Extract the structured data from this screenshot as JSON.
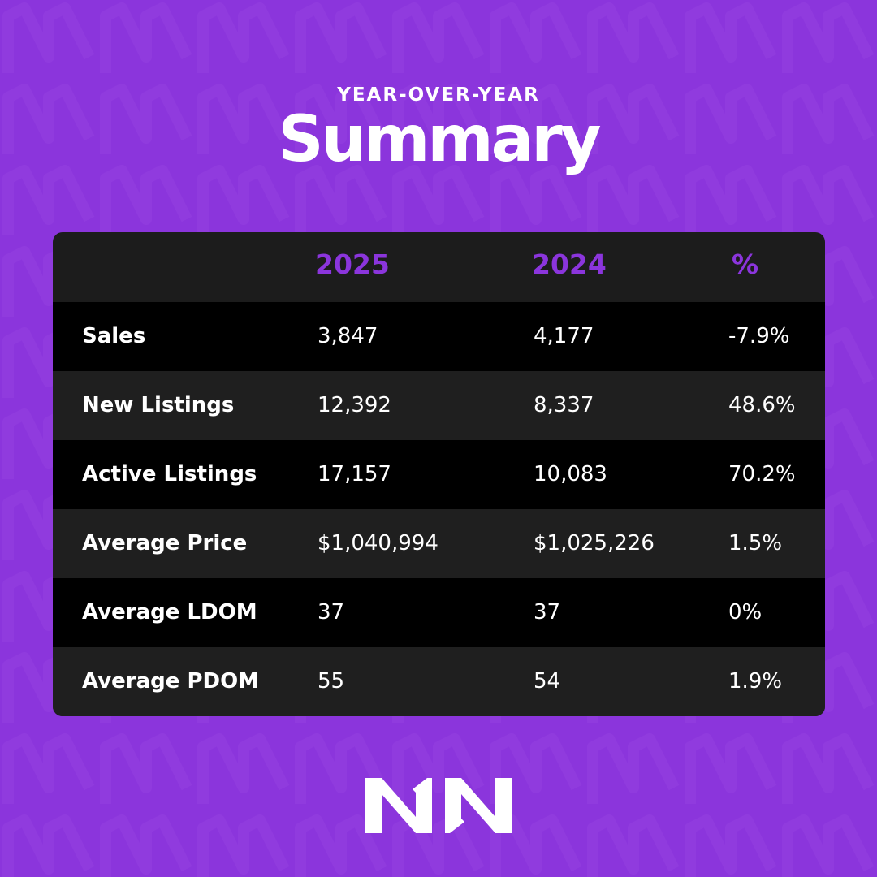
{
  "header": {
    "eyebrow": "YEAR-OVER-YEAR",
    "title": "Summary"
  },
  "table": {
    "columns": [
      "",
      "2025",
      "2024",
      "%"
    ],
    "rows": [
      {
        "label": "Sales",
        "y2025": "3,847",
        "y2024": "4,177",
        "pct": "-7.9%"
      },
      {
        "label": "New Listings",
        "y2025": "12,392",
        "y2024": "8,337",
        "pct": "48.6%"
      },
      {
        "label": "Active Listings",
        "y2025": "17,157",
        "y2024": "10,083",
        "pct": "70.2%"
      },
      {
        "label": "Average Price",
        "y2025": "$1,040,994",
        "y2024": "$1,025,226",
        "pct": "1.5%"
      },
      {
        "label": "Average LDOM",
        "y2025": "37",
        "y2024": "37",
        "pct": "0%"
      },
      {
        "label": "Average PDOM",
        "y2025": "55",
        "y2024": "54",
        "pct": "1.9%"
      }
    ]
  },
  "colors": {
    "background": "#8b35dc",
    "accent": "#8b35dc",
    "card": "#1c1c1c",
    "row_dark": "#000000",
    "row_light": "#1f1f1f",
    "text": "#ffffff"
  },
  "logo": {
    "icon": "nn-logo-icon"
  }
}
